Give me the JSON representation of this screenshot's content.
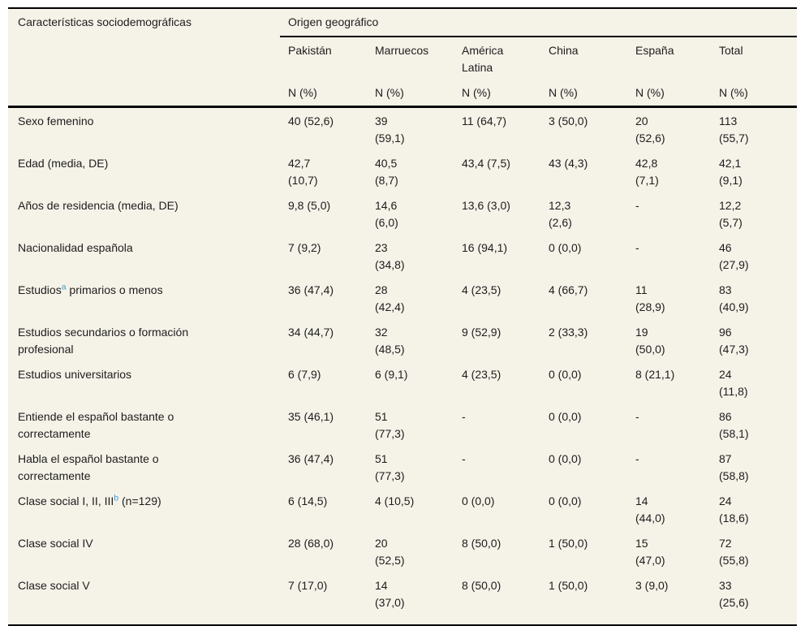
{
  "table": {
    "colors": {
      "background": "#f5f2e8",
      "rule": "#000000",
      "text": "#1d1d1d",
      "footnote_link": "#3f9ed8"
    },
    "header": {
      "row_label_title": "Características sociodemográficas",
      "group_title": "Origen geográfico",
      "columns": [
        "Pakistán",
        "Marruecos",
        "América Latina",
        "China",
        "España",
        "Total"
      ],
      "unit_label": "N (%)"
    },
    "rows": [
      {
        "label": {
          "prefix": "Sexo femenino",
          "sup": "",
          "suffix": ""
        },
        "cells": [
          "40 (52,6)",
          "39\n(59,1)",
          "11 (64,7)",
          "3 (50,0)",
          "20\n(52,6)",
          "113\n(55,7)"
        ]
      },
      {
        "label": {
          "prefix": "Edad (media, DE)",
          "sup": "",
          "suffix": ""
        },
        "cells": [
          "42,7\n(10,7)",
          "40,5\n(8,7)",
          "43,4 (7,5)",
          "43 (4,3)",
          "42,8\n(7,1)",
          "42,1\n(9,1)"
        ]
      },
      {
        "label": {
          "prefix": "Años de residencia (media, DE)",
          "sup": "",
          "suffix": ""
        },
        "cells": [
          "9,8 (5,0)",
          "14,6\n(6,0)",
          "13,6 (3,0)",
          "12,3\n(2,6)",
          "-",
          "12,2\n(5,7)"
        ]
      },
      {
        "label": {
          "prefix": "Nacionalidad española",
          "sup": "",
          "suffix": ""
        },
        "cells": [
          "7 (9,2)",
          "23\n(34,8)",
          "16 (94,1)",
          "0 (0,0)",
          "-",
          "46\n(27,9)"
        ]
      },
      {
        "label": {
          "prefix": "Estudios",
          "sup": "a",
          "suffix": " primarios o menos"
        },
        "cells": [
          "36 (47,4)",
          "28\n(42,4)",
          "4 (23,5)",
          "4 (66,7)",
          "11\n(28,9)",
          "83\n(40,9)"
        ]
      },
      {
        "label": {
          "prefix": "Estudios secundarios o formación\nprofesional",
          "sup": "",
          "suffix": ""
        },
        "cells": [
          "34 (44,7)",
          "32\n(48,5)",
          "9 (52,9)",
          "2 (33,3)",
          "19\n(50,0)",
          "96\n(47,3)"
        ]
      },
      {
        "label": {
          "prefix": "Estudios universitarios",
          "sup": "",
          "suffix": ""
        },
        "cells": [
          "6 (7,9)",
          "6 (9,1)",
          "4 (23,5)",
          "0 (0,0)",
          "8 (21,1)",
          "24\n(11,8)"
        ]
      },
      {
        "label": {
          "prefix": "Entiende el español bastante o\ncorrectamente",
          "sup": "",
          "suffix": ""
        },
        "cells": [
          "35 (46,1)",
          "51\n(77,3)",
          "-",
          "0 (0,0)",
          "-",
          "86\n(58,1)"
        ]
      },
      {
        "label": {
          "prefix": "Habla el español bastante o\ncorrectamente",
          "sup": "",
          "suffix": ""
        },
        "cells": [
          "36 (47,4)",
          "51\n(77,3)",
          "-",
          "0 (0,0)",
          "-",
          "87\n(58,8)"
        ]
      },
      {
        "label": {
          "prefix": "Clase social I, II, III",
          "sup": "b",
          "suffix": " (n=129)"
        },
        "cells": [
          "6 (14,5)",
          "4 (10,5)",
          "0 (0,0)",
          "0 (0,0)",
          "14\n(44,0)",
          "24\n(18,6)"
        ]
      },
      {
        "label": {
          "prefix": "Clase social IV",
          "sup": "",
          "suffix": ""
        },
        "cells": [
          "28 (68,0)",
          "20\n(52,5)",
          "8 (50,0)",
          "1 (50,0)",
          "15\n(47,0)",
          "72\n(55,8)"
        ]
      },
      {
        "label": {
          "prefix": "Clase social V",
          "sup": "",
          "suffix": ""
        },
        "cells": [
          "7 (17,0)",
          "14\n(37,0)",
          "8 (50,0)",
          "1 (50,0)",
          "3 (9,0)",
          "33\n(25,6)"
        ]
      }
    ]
  }
}
